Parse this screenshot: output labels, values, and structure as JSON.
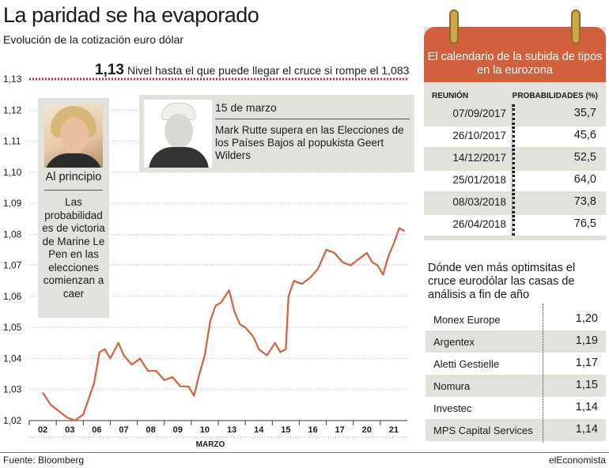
{
  "title": "La paridad se ha evaporado",
  "subtitle": "Evolución de la cotización euro dólar",
  "reference": {
    "value": "1,13",
    "text": "Nivel hasta el que puede llegar el cruce si rompe el 1,083"
  },
  "annotation1": {
    "heading": "Al principio",
    "text": "Las probabilidad es de victoria de Marine Le Pen en las elecciones comienzan a caer"
  },
  "annotation2": {
    "date": "15 de marzo",
    "text": "Mark Rutte supera en las Elecciones de los Países Bajos al popukista Geert Wilders"
  },
  "chart_data": {
    "type": "line",
    "xlabel": "MARZO",
    "ylim": [
      1.02,
      1.13
    ],
    "yticks": [
      "1,02",
      "1,03",
      "1,04",
      "1,05",
      "1,06",
      "1,07",
      "1,08",
      "1,09",
      "1,10",
      "1,11",
      "1,12",
      "1,13"
    ],
    "xticks": [
      "02",
      "03",
      "06",
      "07",
      "08",
      "09",
      "10",
      "13",
      "14",
      "15",
      "16",
      "17",
      "20",
      "21"
    ],
    "reference_line": 1.13,
    "series": [
      {
        "color": "#d3603d",
        "x": [
          0,
          0.3,
          0.6,
          0.9,
          1.2,
          1.5,
          1.7,
          1.9,
          2.1,
          2.3,
          2.5,
          2.8,
          3.0,
          3.3,
          3.6,
          3.9,
          4.2,
          4.5,
          4.8,
          5.1,
          5.4,
          5.6,
          5.8,
          6.0,
          6.2,
          6.4,
          6.6,
          6.9,
          7.1,
          7.3,
          7.5,
          7.8,
          8.0,
          8.3,
          8.6,
          8.8,
          9.0,
          9.1,
          9.3,
          9.6,
          9.9,
          10.2,
          10.5,
          10.8,
          11.1,
          11.4,
          11.7,
          12.0,
          12.2,
          12.4,
          12.6,
          12.8,
          13.0,
          13.2,
          13.4
        ],
        "values": [
          1.029,
          1.025,
          1.023,
          1.021,
          1.02,
          1.022,
          1.027,
          1.032,
          1.042,
          1.043,
          1.04,
          1.045,
          1.041,
          1.038,
          1.04,
          1.036,
          1.036,
          1.033,
          1.034,
          1.031,
          1.031,
          1.028,
          1.035,
          1.041,
          1.052,
          1.057,
          1.058,
          1.062,
          1.055,
          1.051,
          1.05,
          1.047,
          1.043,
          1.041,
          1.045,
          1.042,
          1.043,
          1.06,
          1.065,
          1.064,
          1.066,
          1.069,
          1.075,
          1.074,
          1.071,
          1.07,
          1.072,
          1.074,
          1.071,
          1.07,
          1.067,
          1.073,
          1.077,
          1.082,
          1.081
        ]
      }
    ]
  },
  "calendar": {
    "title": "El calendario de la subida de tipos en la eurozona",
    "col1": "REUNIÓN",
    "col2": "PROBABILIDADES (%)",
    "rows": [
      {
        "date": "07/09/2017",
        "value": "35,7"
      },
      {
        "date": "26/10/2017",
        "value": "45,6"
      },
      {
        "date": "14/12/2017",
        "value": "52,5"
      },
      {
        "date": "25/01/2018",
        "value": "64,0"
      },
      {
        "date": "08/03/2018",
        "value": "73,8"
      },
      {
        "date": "26/04/2018",
        "value": "76,5"
      }
    ]
  },
  "banks": {
    "title": "Dónde ven más optimsitas el cruce eurodólar las casas de análisis a fin de año",
    "rows": [
      {
        "name": "Monex Europe",
        "value": "1,20"
      },
      {
        "name": "Argentex",
        "value": "1,19"
      },
      {
        "name": "Aletti Gestielle",
        "value": "1,17"
      },
      {
        "name": "Nomura",
        "value": "1,15"
      },
      {
        "name": "Investec",
        "value": "1,14"
      },
      {
        "name": "MPS Capital Services",
        "value": "1,14"
      }
    ]
  },
  "footer": {
    "source": "Fuente: Bloomberg",
    "brand": "elEconomista"
  }
}
